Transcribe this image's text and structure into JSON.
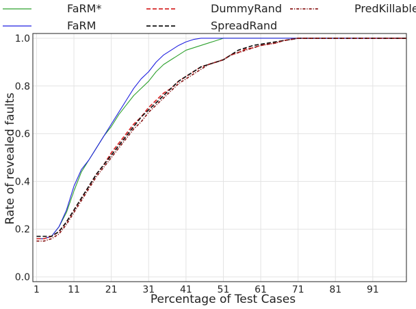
{
  "chart_data": {
    "type": "line",
    "title": "",
    "xlabel": "Percentage of Test Cases",
    "ylabel": "Rate of revealed faults",
    "xlim": [
      0,
      100
    ],
    "ylim": [
      -0.02,
      1.02
    ],
    "x_ticks": [
      1,
      11,
      21,
      31,
      41,
      51,
      61,
      71,
      81,
      91
    ],
    "y_ticks": [
      0.0,
      0.2,
      0.4,
      0.6,
      0.8,
      1.0
    ],
    "y_tick_labels": [
      "0.0",
      "0.2",
      "0.4",
      "0.6",
      "0.8",
      "1.0"
    ],
    "grid": true,
    "legend_position": "top, above plot, 3 columns",
    "series": [
      {
        "name": "FaRM*",
        "color": "#2ca02c",
        "linestyle": "solid",
        "x": [
          1,
          3,
          5,
          7,
          9,
          11,
          13,
          15,
          17,
          19,
          21,
          23,
          25,
          27,
          29,
          31,
          33,
          35,
          37,
          39,
          41,
          43,
          45,
          47,
          49,
          51,
          53,
          55,
          100
        ],
        "y": [
          0.16,
          0.16,
          0.17,
          0.21,
          0.27,
          0.36,
          0.44,
          0.49,
          0.54,
          0.59,
          0.63,
          0.68,
          0.72,
          0.76,
          0.79,
          0.82,
          0.86,
          0.89,
          0.91,
          0.93,
          0.95,
          0.96,
          0.97,
          0.98,
          0.99,
          1.0,
          1.0,
          1.0,
          1.0
        ]
      },
      {
        "name": "FaRM",
        "color": "#1f1fe0",
        "linestyle": "solid",
        "x": [
          1,
          3,
          5,
          7,
          9,
          11,
          13,
          15,
          17,
          19,
          21,
          23,
          25,
          27,
          29,
          31,
          33,
          35,
          37,
          39,
          41,
          43,
          45,
          47,
          49,
          51,
          100
        ],
        "y": [
          0.16,
          0.16,
          0.17,
          0.21,
          0.28,
          0.38,
          0.45,
          0.49,
          0.54,
          0.59,
          0.64,
          0.69,
          0.74,
          0.79,
          0.83,
          0.86,
          0.9,
          0.93,
          0.95,
          0.97,
          0.985,
          0.995,
          1.0,
          1.0,
          1.0,
          1.0,
          1.0
        ]
      },
      {
        "name": "DummyRand",
        "color": "#d62728",
        "linestyle": "dashed",
        "x": [
          1,
          3,
          5,
          7,
          9,
          11,
          13,
          15,
          17,
          19,
          21,
          23,
          25,
          27,
          29,
          31,
          33,
          35,
          37,
          39,
          41,
          43,
          45,
          47,
          49,
          51,
          53,
          55,
          57,
          59,
          61,
          63,
          65,
          67,
          69,
          71,
          100
        ],
        "y": [
          0.16,
          0.16,
          0.17,
          0.19,
          0.23,
          0.28,
          0.33,
          0.38,
          0.43,
          0.47,
          0.52,
          0.56,
          0.6,
          0.64,
          0.67,
          0.71,
          0.74,
          0.77,
          0.79,
          0.82,
          0.84,
          0.86,
          0.88,
          0.89,
          0.9,
          0.91,
          0.93,
          0.94,
          0.955,
          0.96,
          0.97,
          0.975,
          0.98,
          0.99,
          0.995,
          1.0,
          1.0
        ]
      },
      {
        "name": "SpreadRand",
        "color": "#111111",
        "linestyle": "dashed",
        "x": [
          1,
          3,
          5,
          7,
          9,
          11,
          13,
          15,
          17,
          19,
          21,
          23,
          25,
          27,
          29,
          31,
          33,
          35,
          37,
          39,
          41,
          43,
          45,
          47,
          49,
          51,
          53,
          55,
          57,
          59,
          61,
          63,
          65,
          67,
          69,
          71,
          100
        ],
        "y": [
          0.17,
          0.17,
          0.17,
          0.19,
          0.23,
          0.28,
          0.33,
          0.38,
          0.43,
          0.47,
          0.51,
          0.55,
          0.59,
          0.63,
          0.67,
          0.7,
          0.73,
          0.76,
          0.79,
          0.82,
          0.84,
          0.86,
          0.88,
          0.89,
          0.9,
          0.91,
          0.93,
          0.95,
          0.96,
          0.97,
          0.975,
          0.98,
          0.985,
          0.99,
          0.995,
          1.0,
          1.0
        ]
      },
      {
        "name": "PredKillable",
        "color": "#8b1a1a",
        "linestyle": "dashdot",
        "x": [
          1,
          3,
          5,
          7,
          9,
          11,
          13,
          15,
          17,
          19,
          21,
          23,
          25,
          27,
          29,
          31,
          33,
          35,
          37,
          39,
          41,
          43,
          45,
          47,
          49,
          51,
          53,
          55,
          57,
          59,
          61,
          63,
          65,
          67,
          69,
          71,
          100
        ],
        "y": [
          0.15,
          0.15,
          0.16,
          0.18,
          0.22,
          0.27,
          0.32,
          0.37,
          0.42,
          0.46,
          0.5,
          0.54,
          0.58,
          0.62,
          0.65,
          0.69,
          0.72,
          0.75,
          0.78,
          0.81,
          0.83,
          0.85,
          0.87,
          0.89,
          0.9,
          0.91,
          0.93,
          0.94,
          0.95,
          0.96,
          0.97,
          0.975,
          0.98,
          0.99,
          0.995,
          1.0,
          1.0
        ]
      }
    ]
  }
}
